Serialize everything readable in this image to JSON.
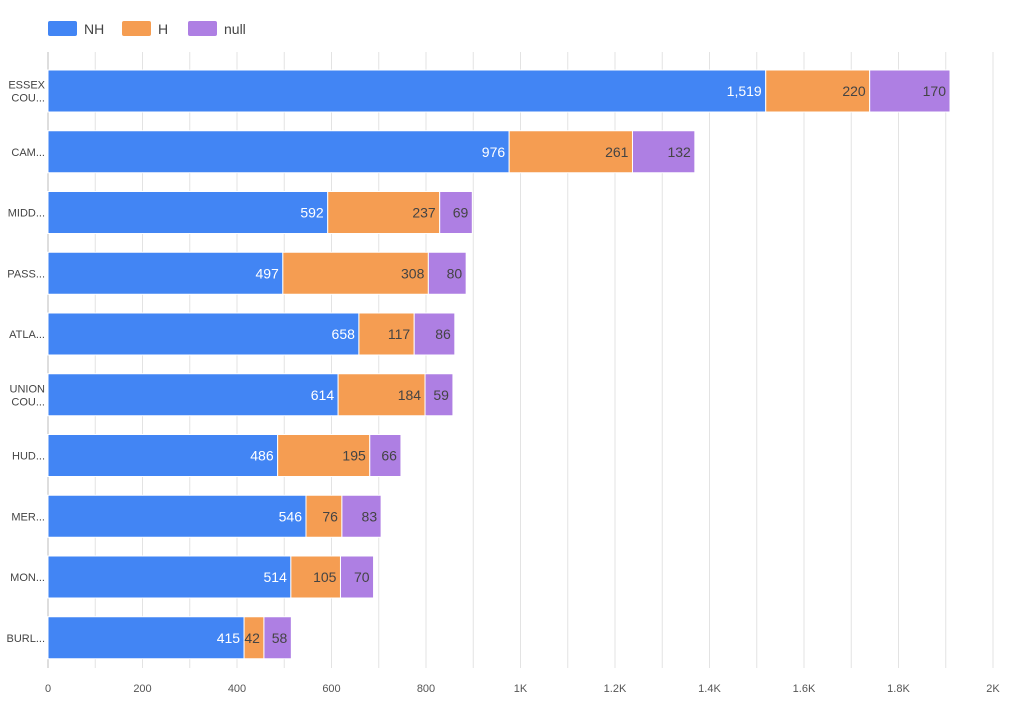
{
  "chart_data": {
    "type": "bar",
    "orientation": "horizontal",
    "stacked": true,
    "title": "",
    "xlabel": "",
    "ylabel": "",
    "categories": [
      [
        "ESSEX",
        "COU..."
      ],
      [
        "CAM..."
      ],
      [
        "MIDD..."
      ],
      [
        "PASS..."
      ],
      [
        "ATLA..."
      ],
      [
        "UNION",
        "COU..."
      ],
      [
        "HUD..."
      ],
      [
        "MER..."
      ],
      [
        "MON..."
      ],
      [
        "BURL..."
      ]
    ],
    "series": [
      {
        "name": "NH",
        "color": "#4285f4",
        "label_color": "#ffffff",
        "values": [
          1519,
          976,
          592,
          497,
          658,
          614,
          486,
          546,
          514,
          415
        ]
      },
      {
        "name": "H",
        "color": "#f59d52",
        "label_color": "#444444",
        "values": [
          220,
          261,
          237,
          308,
          117,
          184,
          195,
          76,
          105,
          42
        ]
      },
      {
        "name": "null",
        "color": "#ae7fe3",
        "label_color": "#444444",
        "values": [
          170,
          132,
          69,
          80,
          86,
          59,
          66,
          83,
          70,
          58
        ]
      }
    ],
    "xlim": [
      0,
      2000
    ],
    "x_ticks": [
      0,
      200,
      400,
      600,
      800,
      1000,
      1200,
      1400,
      1600,
      1800,
      2000
    ],
    "x_tick_labels": [
      "0",
      "200",
      "400",
      "600",
      "800",
      "1K",
      "1.2K",
      "1.4K",
      "1.6K",
      "1.8K",
      "2K"
    ],
    "grid": true,
    "legend_position": "top-left",
    "data_labels": true
  }
}
